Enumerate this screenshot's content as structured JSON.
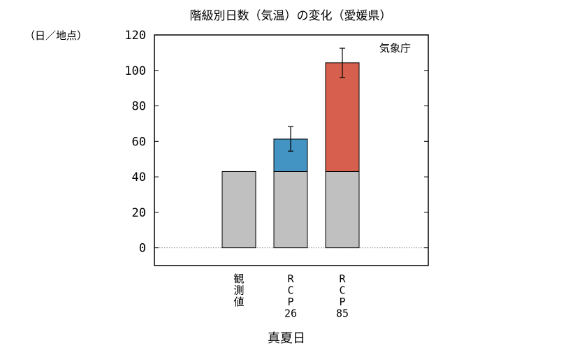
{
  "chart_data": {
    "type": "bar",
    "title": "階級別日数（気温）の変化（愛媛県）",
    "unit_label": "（日／地点）",
    "source_label": "気象庁",
    "xlabel": "真夏日",
    "ylabel": "",
    "ylim": [
      -10,
      120
    ],
    "yticks": [
      0,
      20,
      40,
      60,
      80,
      100,
      120
    ],
    "grid": false,
    "zero_line": "dotted",
    "categories": [
      "観測値",
      "RCP26",
      "RCP85"
    ],
    "category_label_lines": [
      [
        "観",
        "測",
        "値"
      ],
      [
        "R",
        "C",
        "P",
        "26"
      ],
      [
        "R",
        "C",
        "P",
        "85"
      ]
    ],
    "series": [
      {
        "values": [
          43,
          43,
          43
        ],
        "color": "#c0c0c0"
      },
      {
        "values": [
          0,
          18.3,
          61.3
        ],
        "color_by_category": [
          "#c0c0c0",
          "#4393c3",
          "#d6604d"
        ]
      }
    ],
    "totals": [
      43,
      61.3,
      104.3
    ],
    "error_bars": [
      null,
      [
        54.5,
        68.3
      ],
      [
        96,
        112.5
      ]
    ]
  }
}
